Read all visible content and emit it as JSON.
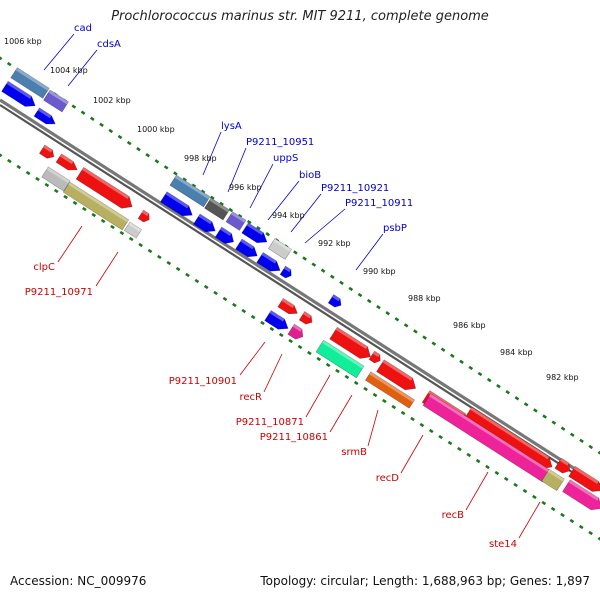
{
  "title": "Prochlorococcus marinus str. MIT 9211, complete genome",
  "footer": {
    "accession": "Accession: NC_009976",
    "topology": "Topology: circular; Length: 1,688,963 bp; Genes: 1,897"
  },
  "colors": {
    "forward_label": "#0000cc",
    "reverse_label": "#cc0000",
    "tick_mark": "#1a7a1a",
    "backbone": "#777777"
  },
  "ticks": [
    {
      "label": "1006 kbp"
    },
    {
      "label": "1004 kbp"
    },
    {
      "label": "1002 kbp"
    },
    {
      "label": "1000 kbp"
    },
    {
      "label": "998 kbp"
    },
    {
      "label": "996 kbp"
    },
    {
      "label": "994 kbp"
    },
    {
      "label": "992 kbp"
    },
    {
      "label": "990 kbp"
    },
    {
      "label": "988 kbp"
    },
    {
      "label": "986 kbp"
    },
    {
      "label": "984 kbp"
    },
    {
      "label": "982 kbp"
    }
  ],
  "forward_labels": [
    {
      "text": "cad"
    },
    {
      "text": "cdsA"
    },
    {
      "text": "lysA"
    },
    {
      "text": "P9211_10951"
    },
    {
      "text": "uppS"
    },
    {
      "text": "bioB"
    },
    {
      "text": "P9211_10921"
    },
    {
      "text": "P9211_10911"
    },
    {
      "text": "psbP"
    }
  ],
  "reverse_labels": [
    {
      "text": "clpC"
    },
    {
      "text": "P9211_10971"
    },
    {
      "text": "P9211_10901"
    },
    {
      "text": "recR"
    },
    {
      "text": "P9211_10871"
    },
    {
      "text": "P9211_10861"
    },
    {
      "text": "srmB"
    },
    {
      "text": "recD"
    },
    {
      "text": "recB"
    },
    {
      "text": "ste14"
    }
  ]
}
